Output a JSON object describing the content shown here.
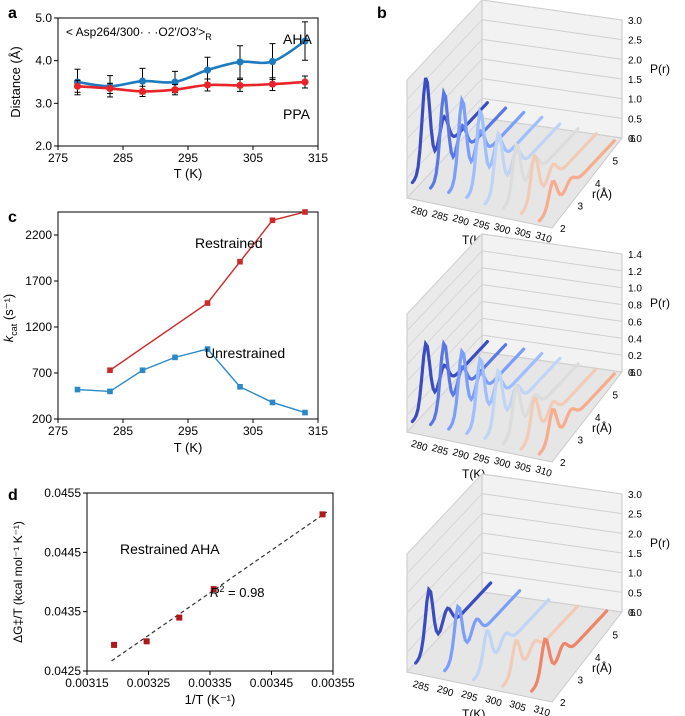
{
  "panel_labels": {
    "a": "a",
    "b": "b",
    "c": "c",
    "d": "d"
  },
  "chart_data": [
    {
      "id": "a",
      "type": "line",
      "title": "",
      "annotation": "< Asp264/300· · ·O2′/O3′>",
      "annotation_sub": "R",
      "xlabel": "T (K)",
      "ylabel": "Distance (Å)",
      "xlim": [
        275,
        315
      ],
      "ylim": [
        2.0,
        5.0
      ],
      "xticks": [
        275,
        285,
        295,
        305,
        315
      ],
      "yticks": [
        2.0,
        3.0,
        4.0,
        5.0
      ],
      "xtick_labels": [
        "275",
        "285",
        "295",
        "305",
        "315"
      ],
      "ytick_labels": [
        "2.0",
        "3.0",
        "4.0",
        "5.0"
      ],
      "series": [
        {
          "name": "AHA",
          "color": "#1f7bbf",
          "x": [
            278,
            283,
            288,
            293,
            298,
            303,
            308,
            313
          ],
          "y": [
            3.5,
            3.4,
            3.52,
            3.5,
            3.78,
            3.97,
            3.98,
            4.46
          ],
          "err": [
            0.3,
            0.25,
            0.3,
            0.25,
            0.3,
            0.38,
            0.42,
            0.45
          ]
        },
        {
          "name": "PPA",
          "color": "#e8242a",
          "x": [
            278,
            283,
            288,
            293,
            298,
            303,
            308,
            313
          ],
          "y": [
            3.4,
            3.35,
            3.28,
            3.32,
            3.43,
            3.42,
            3.45,
            3.5
          ],
          "err": [
            0.14,
            0.12,
            0.12,
            0.12,
            0.14,
            0.14,
            0.15,
            0.14
          ]
        }
      ]
    },
    {
      "id": "c",
      "type": "line",
      "title": "",
      "xlabel": "T (K)",
      "ylabel": "k",
      "ylabel_sub": "cat",
      "ylabel_unit": " (s⁻¹)",
      "xlim": [
        275,
        315
      ],
      "ylim": [
        200,
        2450
      ],
      "xticks": [
        275,
        285,
        295,
        305,
        315
      ],
      "yticks": [
        200,
        700,
        1200,
        1700,
        2200
      ],
      "xtick_labels": [
        "275",
        "285",
        "295",
        "305",
        "315"
      ],
      "ytick_labels": [
        "200",
        "700",
        "1200",
        "1700",
        "2200"
      ],
      "series": [
        {
          "name": "Restrained",
          "color": "#cc2a2a",
          "x": [
            283,
            298,
            303,
            308,
            313
          ],
          "y": [
            730,
            1460,
            1910,
            2360,
            2450
          ]
        },
        {
          "name": "Unrestrained",
          "color": "#2b8ac6",
          "x": [
            278,
            283,
            288,
            293,
            298,
            303,
            308,
            313
          ],
          "y": [
            520,
            500,
            730,
            870,
            960,
            550,
            380,
            270
          ]
        }
      ]
    },
    {
      "id": "d",
      "type": "scatter",
      "title": "",
      "annotation": "Restrained AHA",
      "r2_label": "R",
      "r2_value": " = 0.98",
      "xlabel": "1/T (K⁻¹)",
      "ylabel": "ΔG‡/T (kcal mol⁻¹ K⁻¹)",
      "xlim": [
        0.00315,
        0.00355
      ],
      "ylim": [
        0.0425,
        0.0455
      ],
      "xticks": [
        0.00315,
        0.00325,
        0.00335,
        0.00345,
        0.00355
      ],
      "yticks": [
        0.0425,
        0.0435,
        0.0445,
        0.0455
      ],
      "xtick_labels": [
        "0.00315",
        "0.00325",
        "0.00335",
        "0.00345",
        "0.00355"
      ],
      "ytick_labels": [
        "0.0425",
        "0.0435",
        "0.0445",
        "0.0455"
      ],
      "points": {
        "x": [
          0.003194,
          0.003247,
          0.0033,
          0.003356,
          0.003533
        ],
        "y": [
          0.04294,
          0.043,
          0.0434,
          0.04388,
          0.04514
        ],
        "color": "#b01818"
      },
      "fit": {
        "x": [
          0.00319,
          0.00354
        ],
        "y": [
          0.04267,
          0.04518
        ]
      }
    },
    {
      "id": "b",
      "type": "line",
      "subtype": "3d-waterfall",
      "xlabel": "T(K)",
      "ylabel": "r(Å)",
      "zlabel": "P(r)",
      "r_ticks": [
        "2",
        "3",
        "4",
        "5",
        "6"
      ],
      "plots": [
        {
          "name": "top",
          "zticks": [
            "0.0",
            "0.5",
            "1.0",
            "1.5",
            "2.0",
            "2.5",
            "3.0"
          ],
          "t_labels": [
            "280",
            "285",
            "290",
            "295",
            "300",
            "305",
            "310"
          ],
          "temperatures": [
            278,
            283,
            288,
            293,
            298,
            303,
            308,
            313
          ],
          "peak_heights": [
            2.9,
            2.6,
            2.5,
            2.3,
            1.8,
            1.6,
            1.4,
            0.8
          ],
          "colors": [
            "#3b4cc0",
            "#5a78e4",
            "#7b9ff9",
            "#9ebeff",
            "#c0d4f5",
            "#dddcdc",
            "#f2cbb7",
            "#f7ac8e",
            "#ee8468",
            "#d65244",
            "#b40426"
          ]
        },
        {
          "name": "middle",
          "zticks": [
            "0.0",
            "0.2",
            "0.4",
            "0.6",
            "0.8",
            "1.0",
            "1.2",
            "1.4"
          ],
          "t_labels": [
            "280",
            "285",
            "290",
            "295",
            "300",
            "305",
            "310"
          ],
          "temperatures": [
            278,
            283,
            288,
            293,
            298,
            303,
            308,
            313
          ],
          "peak_heights": [
            0.95,
            1.0,
            0.95,
            0.9,
            0.8,
            0.65,
            0.55,
            0.45
          ],
          "colors": [
            "#3b4cc0",
            "#5a78e4",
            "#7b9ff9",
            "#9ebeff",
            "#c0d4f5",
            "#dddcdc",
            "#f2cbb7",
            "#f7ac8e",
            "#ee8468",
            "#d65244",
            "#b40426"
          ]
        },
        {
          "name": "bottom",
          "zticks": [
            "0.0",
            "0.5",
            "1.0",
            "1.5",
            "2.0",
            "2.5",
            "3.0"
          ],
          "t_labels": [
            "285",
            "290",
            "295",
            "300",
            "305",
            "310"
          ],
          "temperatures": [
            283,
            298,
            303,
            308,
            313
          ],
          "peak_heights": [
            1.9,
            1.6,
            1.1,
            1.0,
            1.2
          ],
          "colors": [
            "#3b4cc0",
            "#7b9ff9",
            "#c0d4f5",
            "#f2cbb7",
            "#ee8468",
            "#d65244"
          ]
        }
      ]
    }
  ]
}
